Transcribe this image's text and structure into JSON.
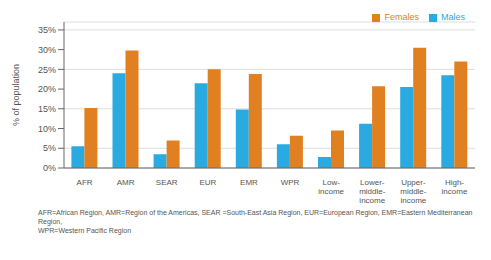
{
  "chart_data": {
    "type": "bar",
    "categories": [
      "AFR",
      "AMR",
      "SEAR",
      "EUR",
      "EMR",
      "WPR",
      "Low-\nincome",
      "Lower-\nmiddle-\nincome",
      "Upper-\nmiddle-\nincome",
      "High-\nincome"
    ],
    "series": [
      {
        "name": "Males",
        "color": "#29ABE2",
        "values": [
          5.5,
          24.0,
          3.5,
          21.5,
          14.8,
          6.0,
          2.8,
          11.2,
          20.5,
          23.5
        ]
      },
      {
        "name": "Females",
        "color": "#E08020",
        "values": [
          15.2,
          29.8,
          7.0,
          25.0,
          23.8,
          8.2,
          9.5,
          20.7,
          30.5,
          27.0
        ]
      }
    ],
    "y_label": "% of population",
    "ylim": [
      0,
      37
    ],
    "yticks": [
      {
        "value": 0,
        "label": "0%"
      },
      {
        "value": 5,
        "label": "5%"
      },
      {
        "value": 10,
        "label": "10%"
      },
      {
        "value": 15,
        "label": "15%"
      },
      {
        "value": 20,
        "label": "20%"
      },
      {
        "value": 25,
        "label": "25%"
      },
      {
        "value": 30,
        "label": "30%"
      },
      {
        "value": 35,
        "label": "35%"
      }
    ],
    "grid": true,
    "legend": "upper right",
    "annotations": [
      "AFR=African Region, AMR=Region of the Americas, SEAR =South-East Asia Region, EUR=European Region, EMR=Eastern Mediterranean Region,\nWPR=Western Pacific Region"
    ]
  }
}
